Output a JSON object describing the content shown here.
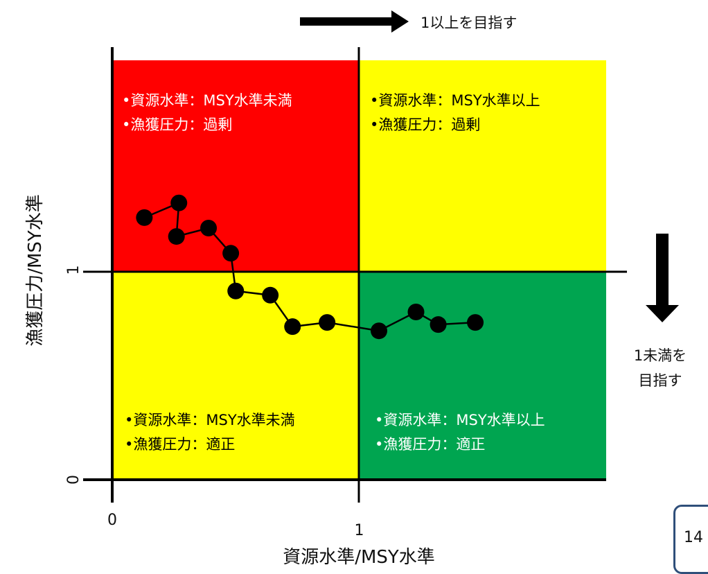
{
  "chart_data": {
    "type": "scatter",
    "title": "",
    "xlabel": "資源水準/MSY水準",
    "ylabel": "漁獲圧力/MSY水準",
    "xlim": [
      0,
      2
    ],
    "ylim": [
      0,
      2
    ],
    "x_ticks": [
      "0",
      "1"
    ],
    "y_ticks": [
      "0",
      "1"
    ],
    "grid": false,
    "series": [
      {
        "connected": true,
        "x": [
          0.13,
          0.27,
          0.26,
          0.39,
          0.48,
          0.5,
          0.64,
          0.73,
          0.87,
          1.08,
          1.23,
          1.32,
          1.47
        ],
        "y": [
          1.25,
          1.32,
          1.16,
          1.2,
          1.08,
          0.9,
          0.88,
          0.73,
          0.75,
          0.71,
          0.8,
          0.74,
          0.75
        ]
      }
    ],
    "quadrants": [
      {
        "position": "top-left",
        "color": "#ff0000",
        "text_color": "#ffffff",
        "lines": [
          "•資源水準：MSY水準未満",
          "•漁獲圧力：過剰"
        ]
      },
      {
        "position": "top-right",
        "color": "#ffff00",
        "text_color": "#000000",
        "lines": [
          "•資源水準：MSY水準以上",
          "•漁獲圧力：過剰"
        ]
      },
      {
        "position": "bottom-left",
        "color": "#ffff00",
        "text_color": "#000000",
        "lines": [
          "•資源水準：MSY水準未満",
          "•漁獲圧力：適正"
        ]
      },
      {
        "position": "bottom-right",
        "color": "#00a550",
        "text_color": "#ffffff",
        "lines": [
          "•資源水準：MSY水準以上",
          "•漁獲圧力：適正"
        ]
      }
    ],
    "annotations": {
      "top_arrow_label": "1以上を目指す",
      "right_arrow_label": [
        "1未満を",
        "目指す"
      ]
    }
  },
  "page_number": "14"
}
